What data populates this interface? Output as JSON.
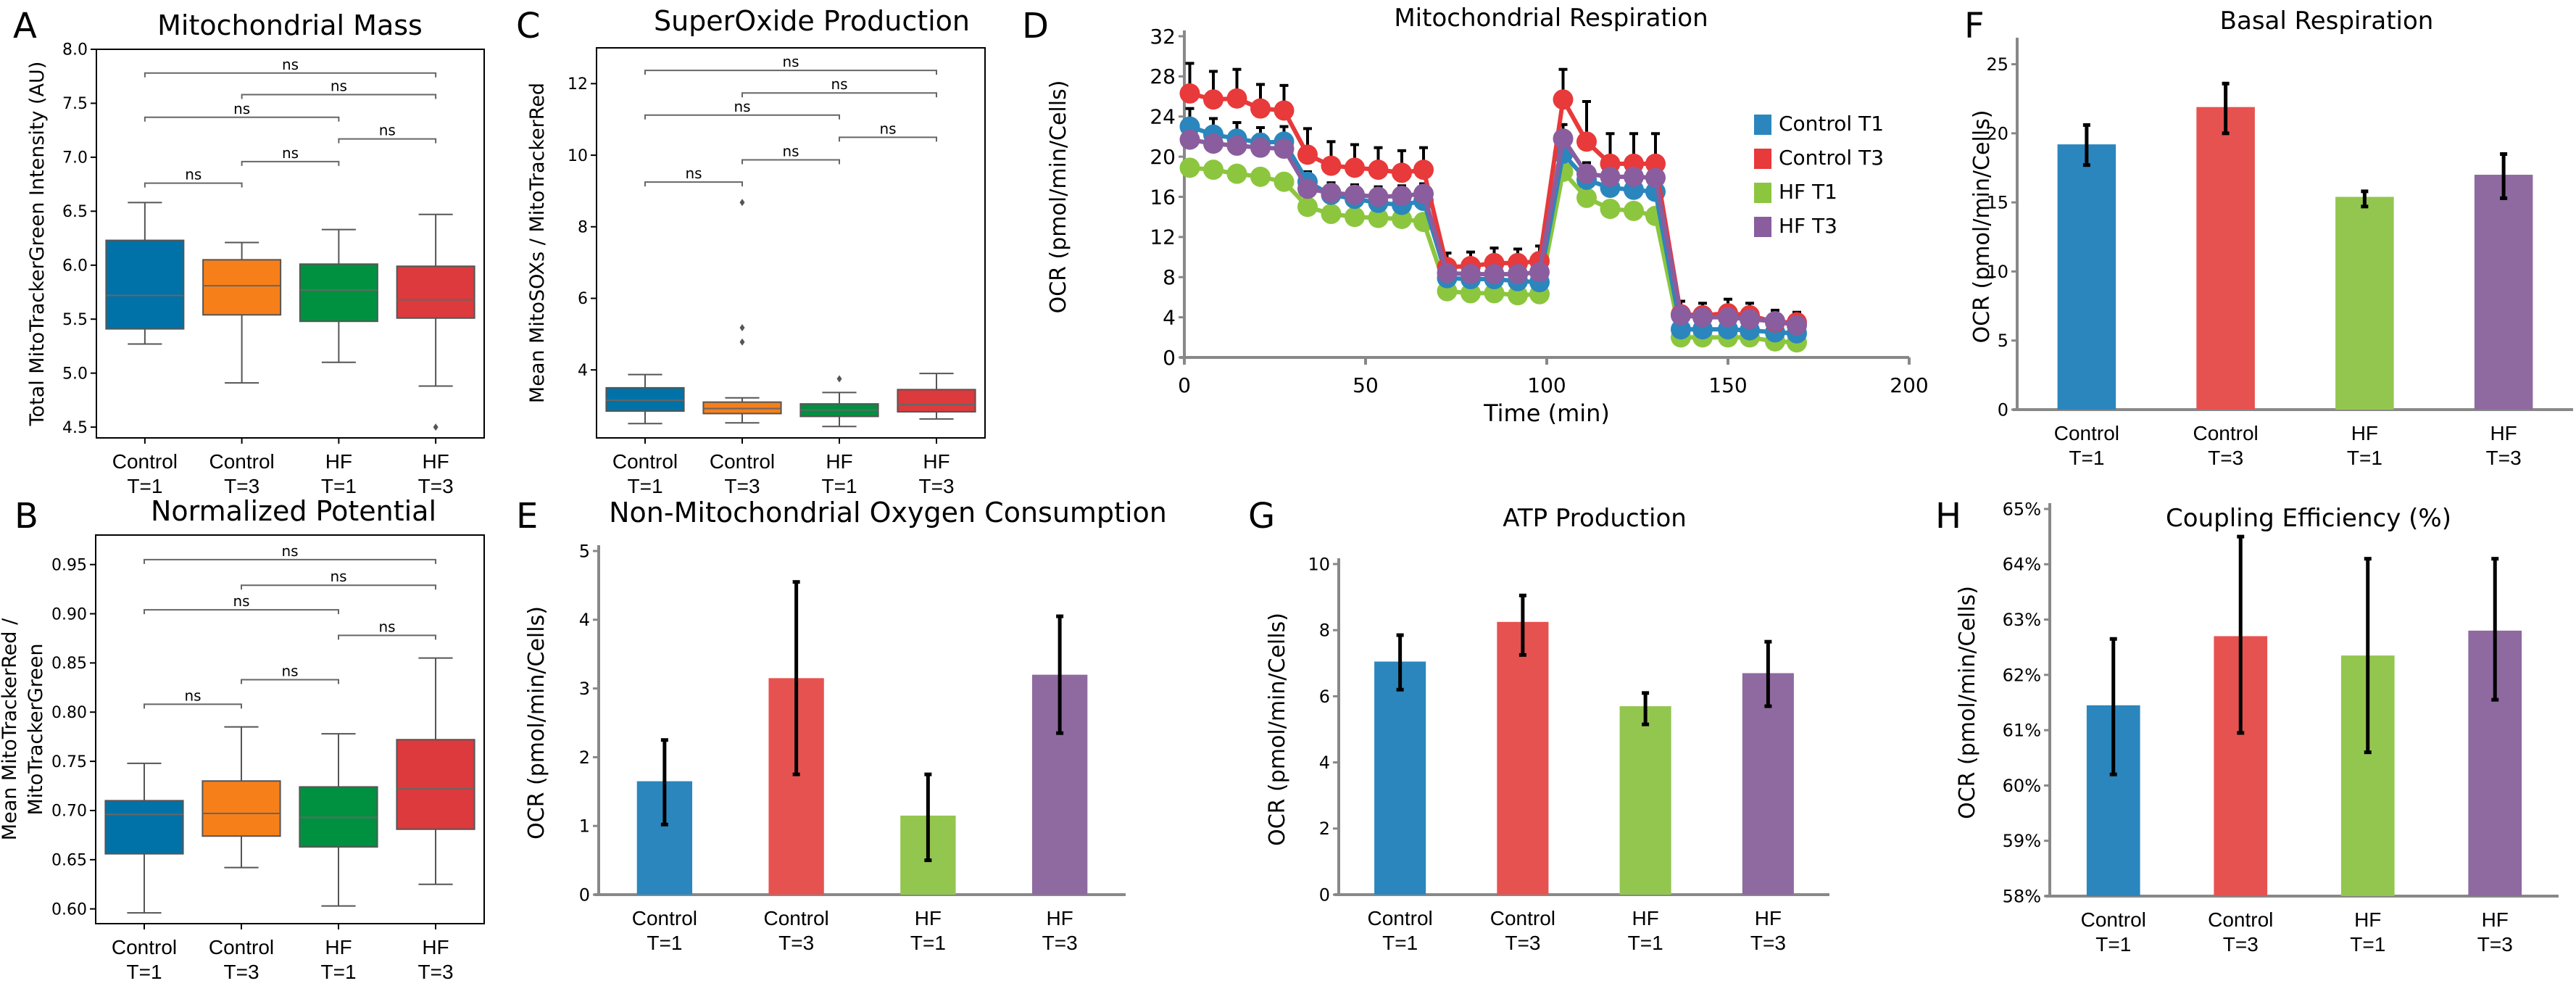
{
  "figure": {
    "groups": [
      "Control T=1",
      "Control T=3",
      "HF T=1",
      "HF T=3"
    ],
    "group_lines": [
      [
        "Control",
        "T=1"
      ],
      [
        "Control",
        "T=3"
      ],
      [
        "HF",
        "T=1"
      ],
      [
        "HF",
        "T=3"
      ]
    ],
    "box_colors": [
      "#0072a8",
      "#f77f1a",
      "#009140",
      "#dc3a3d"
    ],
    "bar_colors": [
      "#2b86bd",
      "#e65250",
      "#93c64e",
      "#8e6aa0"
    ]
  },
  "chart_data": [
    {
      "id": "A",
      "panel_label": "A",
      "type": "box",
      "title": "Mitochondrial Mass",
      "ylabel": "Total MitoTrackerGreen  Intensity (AU)",
      "xlabel": "",
      "categories": [
        "Control T=1",
        "Control T=3",
        "HF T=1",
        "HF T=3"
      ],
      "ylim": [
        4.4,
        8.0
      ],
      "yticks": [
        4.5,
        5.0,
        5.5,
        6.0,
        6.5,
        7.0,
        7.5,
        8.0
      ],
      "ytick_labels": [
        "4.5",
        "5.0",
        "5.5",
        "6.0",
        "6.5",
        "7.0",
        "7.5",
        "8.0"
      ],
      "boxes": [
        {
          "whisker_low": 5.27,
          "q1": 5.41,
          "median": 5.72,
          "q3": 6.23,
          "whisker_high": 6.58,
          "outliers": []
        },
        {
          "whisker_low": 4.91,
          "q1": 5.54,
          "median": 5.81,
          "q3": 6.05,
          "whisker_high": 6.21,
          "outliers": []
        },
        {
          "whisker_low": 5.1,
          "q1": 5.48,
          "median": 5.77,
          "q3": 6.01,
          "whisker_high": 6.33,
          "outliers": []
        },
        {
          "whisker_low": 4.88,
          "q1": 5.51,
          "median": 5.68,
          "q3": 5.99,
          "whisker_high": 6.47,
          "outliers": [
            4.5
          ]
        }
      ],
      "significance": [
        {
          "from": 0,
          "to": 1,
          "y": 6.76,
          "label": "ns"
        },
        {
          "from": 1,
          "to": 2,
          "y": 6.96,
          "label": "ns"
        },
        {
          "from": 2,
          "to": 3,
          "y": 7.17,
          "label": "ns"
        },
        {
          "from": 0,
          "to": 2,
          "y": 7.37,
          "label": "ns"
        },
        {
          "from": 1,
          "to": 3,
          "y": 7.58,
          "label": "ns"
        },
        {
          "from": 0,
          "to": 3,
          "y": 7.78,
          "label": "ns"
        }
      ]
    },
    {
      "id": "B",
      "panel_label": "B",
      "type": "box",
      "title": "Normalized Potential",
      "ylabel": "Mean MitoTrackerRed /\nMitoTrackerGreen",
      "xlabel": "",
      "categories": [
        "Control T=1",
        "Control T=3",
        "HF T=1",
        "HF T=3"
      ],
      "ylim": [
        0.585,
        0.98
      ],
      "yticks": [
        0.6,
        0.65,
        0.7,
        0.75,
        0.8,
        0.85,
        0.9,
        0.95
      ],
      "ytick_labels": [
        "0.60",
        "0.65",
        "0.70",
        "0.75",
        "0.80",
        "0.85",
        "0.90",
        "0.95"
      ],
      "boxes": [
        {
          "whisker_low": 0.596,
          "q1": 0.656,
          "median": 0.696,
          "q3": 0.71,
          "whisker_high": 0.748,
          "outliers": []
        },
        {
          "whisker_low": 0.642,
          "q1": 0.674,
          "median": 0.697,
          "q3": 0.73,
          "whisker_high": 0.785,
          "outliers": []
        },
        {
          "whisker_low": 0.603,
          "q1": 0.663,
          "median": 0.693,
          "q3": 0.724,
          "whisker_high": 0.778,
          "outliers": []
        },
        {
          "whisker_low": 0.625,
          "q1": 0.681,
          "median": 0.722,
          "q3": 0.772,
          "whisker_high": 0.855,
          "outliers": []
        }
      ],
      "significance": [
        {
          "from": 0,
          "to": 1,
          "y": 0.808,
          "label": "ns"
        },
        {
          "from": 1,
          "to": 2,
          "y": 0.833,
          "label": "ns"
        },
        {
          "from": 2,
          "to": 3,
          "y": 0.878,
          "label": "ns"
        },
        {
          "from": 0,
          "to": 2,
          "y": 0.904,
          "label": "ns"
        },
        {
          "from": 1,
          "to": 3,
          "y": 0.929,
          "label": "ns"
        },
        {
          "from": 0,
          "to": 3,
          "y": 0.955,
          "label": "ns"
        }
      ]
    },
    {
      "id": "C",
      "panel_label": "C",
      "type": "box",
      "title": "SuperOxide Production",
      "ylabel": "Mean MitoSOXs / MitoTrackerRed",
      "xlabel": "",
      "categories": [
        "Control T=1",
        "Control T=3",
        "HF T=1",
        "HF T=3"
      ],
      "ylim": [
        2.1,
        13.0
      ],
      "yticks": [
        4,
        6,
        8,
        10,
        12
      ],
      "ytick_labels": [
        "4",
        "6",
        "8",
        "10",
        "12"
      ],
      "boxes": [
        {
          "whisker_low": 2.5,
          "q1": 2.85,
          "median": 3.15,
          "q3": 3.5,
          "whisker_high": 3.87,
          "outliers": []
        },
        {
          "whisker_low": 2.52,
          "q1": 2.78,
          "median": 2.92,
          "q3": 3.1,
          "whisker_high": 3.22,
          "outliers": [
            4.78,
            5.18,
            8.68
          ]
        },
        {
          "whisker_low": 2.42,
          "q1": 2.7,
          "median": 2.88,
          "q3": 3.05,
          "whisker_high": 3.37,
          "outliers": [
            3.75
          ]
        },
        {
          "whisker_low": 2.63,
          "q1": 2.83,
          "median": 3.03,
          "q3": 3.45,
          "whisker_high": 3.9,
          "outliers": []
        }
      ],
      "significance": [
        {
          "from": 0,
          "to": 1,
          "y": 9.25,
          "label": "ns"
        },
        {
          "from": 1,
          "to": 2,
          "y": 9.87,
          "label": "ns"
        },
        {
          "from": 2,
          "to": 3,
          "y": 10.5,
          "label": "ns"
        },
        {
          "from": 0,
          "to": 2,
          "y": 11.12,
          "label": "ns"
        },
        {
          "from": 1,
          "to": 3,
          "y": 11.74,
          "label": "ns"
        },
        {
          "from": 0,
          "to": 3,
          "y": 12.37,
          "label": "ns"
        }
      ]
    },
    {
      "id": "D",
      "panel_label": "D",
      "type": "line",
      "title": "Mitochondrial Respiration",
      "xlabel": "Time (min)",
      "ylabel": "OCR (pmol/min/Cells)",
      "xlim": [
        0,
        200
      ],
      "ylim": [
        0,
        32
      ],
      "xticks": [
        0,
        50,
        100,
        150,
        200
      ],
      "xtick_labels": [
        "0",
        "50",
        "100",
        "150",
        "200"
      ],
      "yticks": [
        0,
        4,
        8,
        12,
        16,
        20,
        24,
        28,
        32
      ],
      "ytick_labels": [
        "0",
        "4",
        "8",
        "12",
        "16",
        "20",
        "24",
        "28",
        "32"
      ],
      "legend_position": "right",
      "x": [
        1.5,
        8,
        14.5,
        21,
        27.5,
        34,
        40.5,
        47,
        53.5,
        60,
        66,
        72.5,
        79,
        85.5,
        92,
        98,
        104.5,
        111,
        117.5,
        124,
        130,
        137,
        143,
        150,
        156,
        163,
        169
      ],
      "series": [
        {
          "name": "Control T1",
          "color": "#2b86bd",
          "values": [
            23.0,
            22.2,
            21.8,
            21.4,
            21.5,
            17.5,
            16.2,
            15.8,
            15.4,
            15.2,
            15.6,
            7.9,
            7.8,
            7.8,
            7.6,
            7.5,
            20.3,
            17.7,
            16.9,
            16.7,
            16.5,
            2.8,
            2.8,
            2.8,
            2.7,
            2.5,
            2.4
          ],
          "err": [
            1.8,
            1.6,
            1.6,
            1.5,
            1.5,
            1.0,
            0.9,
            0.9,
            0.9,
            0.9,
            0.9,
            0.6,
            0.6,
            0.6,
            0.6,
            0.6,
            1.5,
            1.1,
            1.0,
            1.0,
            1.0,
            0.4,
            0.4,
            0.4,
            0.4,
            0.4,
            0.4
          ]
        },
        {
          "name": "Control T3",
          "color": "#e8393b",
          "values": [
            26.3,
            25.7,
            25.8,
            24.8,
            24.6,
            20.2,
            19.1,
            18.9,
            18.7,
            18.4,
            18.7,
            9.0,
            9.1,
            9.4,
            9.4,
            9.6,
            25.7,
            21.5,
            19.3,
            19.3,
            19.3,
            4.3,
            4.2,
            4.4,
            4.2,
            3.5,
            3.5
          ],
          "err": [
            3.0,
            2.8,
            2.9,
            2.4,
            2.5,
            2.6,
            2.4,
            2.3,
            2.2,
            2.2,
            2.2,
            1.4,
            1.4,
            1.5,
            1.4,
            1.5,
            3.0,
            4.0,
            3.0,
            3.0,
            3.0,
            1.3,
            1.2,
            1.4,
            1.2,
            1.2,
            1.0
          ]
        },
        {
          "name": "HF T1",
          "color": "#8cc63e",
          "values": [
            18.9,
            18.7,
            18.3,
            18.0,
            17.5,
            15.0,
            14.3,
            14.0,
            13.9,
            13.8,
            13.5,
            6.6,
            6.4,
            6.4,
            6.2,
            6.3,
            18.5,
            15.9,
            14.8,
            14.6,
            14.1,
            2.0,
            2.0,
            2.0,
            2.0,
            1.6,
            1.5
          ],
          "err": [
            0.6,
            0.6,
            0.6,
            0.6,
            0.6,
            0.5,
            0.5,
            0.5,
            0.5,
            0.5,
            0.5,
            0.3,
            0.3,
            0.3,
            0.3,
            0.3,
            0.6,
            0.5,
            0.5,
            0.5,
            0.5,
            0.2,
            0.2,
            0.2,
            0.2,
            0.2,
            0.2
          ]
        },
        {
          "name": "HF T3",
          "color": "#8a5d9e",
          "values": [
            21.7,
            21.3,
            21.1,
            20.9,
            20.8,
            16.8,
            16.4,
            16.2,
            16.0,
            16.1,
            16.3,
            8.4,
            8.3,
            8.3,
            8.3,
            8.5,
            21.8,
            18.3,
            18.0,
            18.0,
            17.9,
            4.2,
            4.0,
            4.0,
            3.8,
            3.6,
            3.2
          ],
          "err": [
            1.5,
            1.4,
            1.4,
            1.3,
            1.3,
            1.0,
            1.0,
            1.0,
            1.0,
            1.0,
            1.0,
            0.6,
            0.6,
            0.6,
            0.6,
            0.6,
            1.4,
            1.1,
            1.0,
            1.0,
            1.0,
            0.5,
            0.5,
            0.5,
            0.5,
            0.5,
            0.5
          ]
        }
      ]
    },
    {
      "id": "E",
      "panel_label": "E",
      "type": "bar",
      "title": "Non-Mitochondrial Oxygen Consumption",
      "xlabel": "",
      "ylabel": "OCR (pmol/min/Cells)",
      "categories": [
        "Control T=1",
        "Control T=3",
        "HF T=1",
        "HF T=3"
      ],
      "values": [
        1.65,
        3.15,
        1.15,
        3.2
      ],
      "err_low": [
        1.02,
        1.75,
        0.5,
        2.35
      ],
      "err_high": [
        2.25,
        4.55,
        1.75,
        4.05
      ],
      "ylim": [
        0,
        5
      ],
      "yticks": [
        0,
        1,
        2,
        3,
        4,
        5
      ],
      "ytick_labels": [
        "0",
        "1",
        "2",
        "3",
        "4",
        "5"
      ]
    },
    {
      "id": "F",
      "panel_label": "F",
      "type": "bar",
      "title": "Basal Respiration",
      "xlabel": "",
      "ylabel": "OCR (pmol/min/Cells)",
      "categories": [
        "Control T=1",
        "Control T=3",
        "HF T=1",
        "HF T=3"
      ],
      "values": [
        19.2,
        21.9,
        15.4,
        17.0
      ],
      "err_low": [
        17.7,
        20.0,
        14.7,
        15.3
      ],
      "err_high": [
        20.6,
        23.6,
        15.8,
        18.5
      ],
      "ylim": [
        0,
        26.5
      ],
      "yticks": [
        0,
        5,
        10,
        15,
        20,
        25
      ],
      "ytick_labels": [
        "0",
        "5",
        "10",
        "15",
        "20",
        "25"
      ]
    },
    {
      "id": "G",
      "panel_label": "G",
      "type": "bar",
      "title": "ATP Production",
      "xlabel": "",
      "ylabel": "OCR (pmol/min/Cells)",
      "categories": [
        "Control T=1",
        "Control T=3",
        "HF T=1",
        "HF T=3"
      ],
      "values": [
        7.05,
        8.25,
        5.7,
        6.7
      ],
      "err_low": [
        6.2,
        7.25,
        5.15,
        5.7
      ],
      "err_high": [
        7.85,
        9.05,
        6.1,
        7.65
      ],
      "ylim": [
        0,
        10
      ],
      "yticks": [
        0,
        2,
        4,
        6,
        8,
        10
      ],
      "ytick_labels": [
        "0",
        "2",
        "4",
        "6",
        "8",
        "10"
      ]
    },
    {
      "id": "H",
      "panel_label": "H",
      "type": "bar",
      "title": "Coupling Efficiency (%)",
      "xlabel": "",
      "ylabel": "OCR (pmol/min/Cells)",
      "categories": [
        "Control T=1",
        "Control T=3",
        "HF T=1",
        "HF T=3"
      ],
      "values": [
        61.45,
        62.7,
        62.35,
        62.8
      ],
      "err_low": [
        60.2,
        60.95,
        60.6,
        61.55
      ],
      "err_high": [
        62.65,
        64.5,
        64.1,
        64.1
      ],
      "ylim": [
        58,
        65
      ],
      "yticks": [
        58,
        59,
        60,
        61,
        62,
        63,
        64,
        65
      ],
      "ytick_labels": [
        "58%",
        "59%",
        "60%",
        "61%",
        "62%",
        "63%",
        "64%",
        "65%"
      ]
    }
  ]
}
